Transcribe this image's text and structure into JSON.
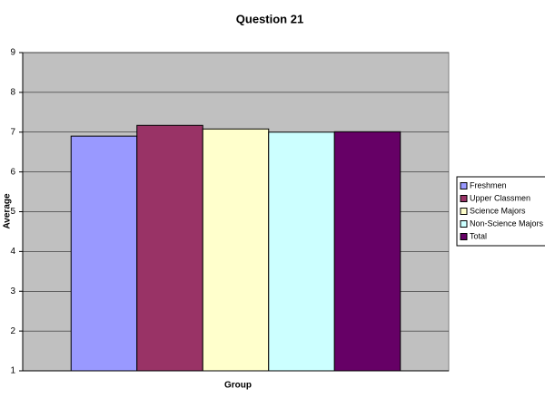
{
  "chart_data": {
    "type": "bar",
    "title": "Question 21",
    "x_label": "Group",
    "y_label": "Average",
    "categories": [
      null
    ],
    "series": [
      {
        "name": "Freshmen",
        "color": "#9999ff",
        "values": [
          6.9
        ]
      },
      {
        "name": "Upper Classmen",
        "color": "#993366",
        "values": [
          7.17
        ]
      },
      {
        "name": "Science Majors",
        "color": "#ffffcc",
        "values": [
          7.08
        ]
      },
      {
        "name": "Non-Science Majors",
        "color": "#ccffff",
        "values": [
          7.0
        ]
      },
      {
        "name": "Total",
        "color": "#660066",
        "values": [
          7.01
        ]
      }
    ],
    "ylim": [
      1,
      9
    ],
    "yticks": [
      1,
      2,
      3,
      4,
      5,
      6,
      7,
      8,
      9
    ],
    "grid": true,
    "legend": "right"
  }
}
